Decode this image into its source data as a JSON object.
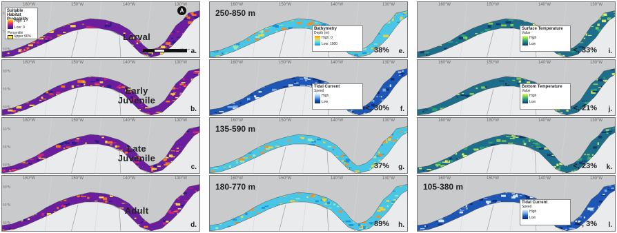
{
  "colors": {
    "land": "#c9cacb",
    "sea": "#e9ebec",
    "panel_border": "#777777",
    "ramp_prob": [
      "#ffe14a",
      "#ff7d1a",
      "#d6247e",
      "#6a1e9e",
      "#1f1c8c"
    ],
    "ramp_bathy": [
      "#ff8a1a",
      "#f2d33a",
      "#9fe6b8",
      "#49c6e5",
      "#1c8fd6"
    ],
    "ramp_current": [
      "#e6f2ff",
      "#7fb3ea",
      "#1e56b5",
      "#0a2a7a"
    ],
    "ramp_temp": [
      "#e8f56a",
      "#8cd64b",
      "#2aa878",
      "#1c6e8a",
      "#12346a"
    ]
  },
  "axis": {
    "top_coords": [
      "160°W",
      "150°W",
      "140°W",
      "130°W"
    ],
    "side_coords": [
      "60°N",
      "55°N",
      "50°N"
    ]
  },
  "panels": [
    {
      "id": "a",
      "letter": "a.",
      "stage": "Larval",
      "badge": "A",
      "legend": {
        "title": "Suitable Habitat Probability",
        "high": "High: 1",
        "low": "Low: 0",
        "extra1": "Percentile",
        "extra2": "Upper 90%"
      },
      "scale": {
        "labels": [
          "0",
          "200",
          "400",
          "800 Km"
        ]
      }
    },
    {
      "id": "b",
      "letter": "b.",
      "stage": "Early Juvenile"
    },
    {
      "id": "c",
      "letter": "c.",
      "stage": "Late Juvenile"
    },
    {
      "id": "d",
      "letter": "d.",
      "stage": "Adult"
    },
    {
      "id": "e",
      "letter": "e.",
      "depth": "250-850 m",
      "pct": "38%",
      "legend": {
        "title": "Bathymetry",
        "sub": "Depth (m)",
        "high": "High: 0",
        "low": "Low: 1000"
      }
    },
    {
      "id": "f",
      "letter": "f.",
      "pct": "<, 30%",
      "legend": {
        "title": "Tidal Current",
        "sub": "Speed",
        "high": "High",
        "low": "Low"
      }
    },
    {
      "id": "g",
      "letter": "g.",
      "depth": "135-590 m",
      "pct": "37%"
    },
    {
      "id": "h",
      "letter": "h.",
      "depth": "180-770 m",
      "pct": "89%"
    },
    {
      "id": "i",
      "letter": "i.",
      "pct": "<, 33%",
      "legend": {
        "title": "Surface Temperature",
        "sub": "Value",
        "high": "High",
        "low": "Low"
      }
    },
    {
      "id": "j",
      "letter": "j.",
      "pct": "<, 21%",
      "legend": {
        "title": "Bottom Temperature",
        "sub": "Value",
        "high": "High",
        "low": "Low"
      }
    },
    {
      "id": "k",
      "letter": "k.",
      "pct": "<, 23%"
    },
    {
      "id": "l",
      "letter": "l.",
      "depth": "105-380 m",
      "pct": "<, 3%",
      "legend": {
        "title": "Tidal Current",
        "sub": "Speed",
        "high": "High",
        "low": "Low"
      }
    }
  ]
}
